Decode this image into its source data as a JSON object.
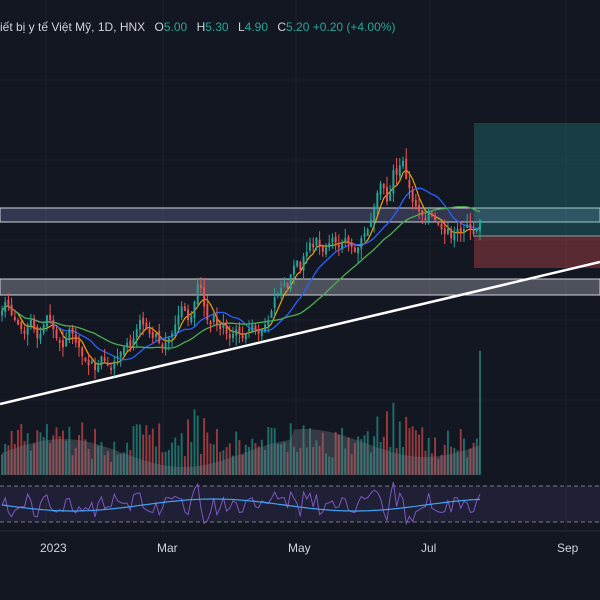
{
  "legend": {
    "symbol": "iết bị y tế Việt Mỹ",
    "interval": "1D",
    "exchange": "HNX",
    "o_label": "O",
    "o": "5.00",
    "h_label": "H",
    "h": "5.30",
    "l_label": "L",
    "l": "4.90",
    "c_label": "C",
    "c": "5.20",
    "change": "+0.20 (+4.00%)"
  },
  "time_axis": [
    "2023",
    "Mar",
    "May",
    "Jul",
    "Sep"
  ],
  "colors": {
    "background": "#131722",
    "up": "#26a69a",
    "down": "#ef5350",
    "ma_fast": "#f0a500",
    "ma_mid": "#2962ff",
    "ma_slow": "#4caf50",
    "rsi": "#7e57c2",
    "rsi_ma": "#42a5f5",
    "trendline": "#ffffff",
    "tp_zone": "#26a69a",
    "sl_zone": "#ef5350"
  },
  "chart_data": {
    "type": "candlestick",
    "interval": "1D",
    "close_series": [
      4.2,
      4.3,
      4.25,
      4.15,
      4.1,
      4.05,
      4.0,
      3.95,
      4.05,
      4.1,
      4.0,
      3.9,
      3.95,
      4.05,
      4.15,
      4.1,
      4.0,
      3.9,
      3.85,
      3.8,
      3.9,
      4.0,
      3.95,
      3.85,
      3.8,
      3.7,
      3.65,
      3.6,
      3.65,
      3.55,
      3.6,
      3.7,
      3.65,
      3.6,
      3.55,
      3.65,
      3.7,
      3.75,
      3.8,
      3.85,
      3.8,
      3.9,
      4.0,
      4.1,
      4.05,
      4.0,
      3.95,
      3.9,
      3.95,
      3.85,
      3.8,
      3.85,
      3.9,
      3.95,
      4.05,
      4.15,
      4.25,
      4.2,
      4.1,
      4.15,
      4.3,
      4.5,
      4.45,
      4.25,
      4.1,
      4.05,
      4.15,
      4.05,
      4.0,
      4.05,
      3.95,
      3.9,
      3.95,
      4.0,
      3.95,
      3.9,
      3.95,
      4.0,
      4.05,
      4.0,
      3.95,
      4.0,
      4.05,
      4.1,
      4.2,
      4.35,
      4.4,
      4.45,
      4.5,
      4.45,
      4.6,
      4.7,
      4.75,
      4.65,
      4.8,
      4.85,
      4.95,
      4.9,
      5.0,
      4.9,
      4.85,
      4.9,
      4.95,
      5.0,
      4.95,
      4.9,
      4.95,
      5.0,
      4.95,
      4.9,
      4.85,
      4.9,
      5.0,
      5.05,
      5.1,
      5.2,
      5.35,
      5.5,
      5.6,
      5.55,
      5.4,
      5.5,
      5.75,
      5.7,
      5.8,
      5.85,
      5.65,
      5.55,
      5.4,
      5.35,
      5.3,
      5.25,
      5.2,
      5.3,
      5.25,
      5.2,
      5.15,
      5.1,
      5.05,
      5.1,
      5.0,
      5.05,
      5.1,
      5.05,
      5.1,
      5.15,
      5.1,
      5.05,
      5.1,
      5.2
    ],
    "moving_averages": [
      "fast",
      "mid",
      "slow"
    ],
    "trendline": true,
    "zones": [
      "resistance band",
      "support band",
      "long position (target / stop)"
    ],
    "volume": true,
    "rsi": true
  }
}
